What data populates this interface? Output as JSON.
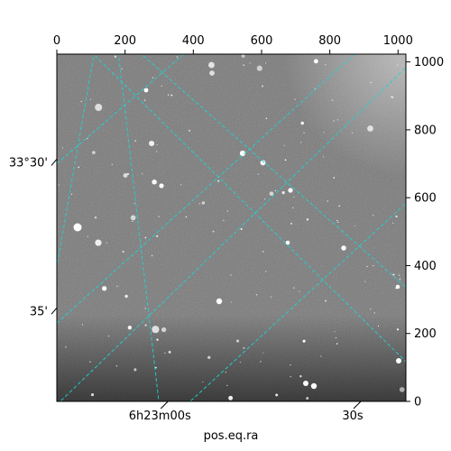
{
  "figure": {
    "title": "",
    "xlabel": "pos.eq.ra",
    "ylabel": ""
  },
  "pixel_axes": {
    "x_ticks": [
      0,
      200,
      400,
      600,
      800,
      1000
    ],
    "y_ticks": [
      0,
      200,
      400,
      600,
      800,
      1000
    ],
    "x_range": [
      0,
      1023
    ],
    "y_range": [
      0,
      1023
    ]
  },
  "world_axes": {
    "ra_labels": [
      {
        "text": "6h23m00s",
        "pixel": 310
      },
      {
        "text": "30s",
        "pixel": 875
      }
    ],
    "dec_labels": [
      {
        "text": "33°30'",
        "pixel": 703
      },
      {
        "text": "35'",
        "pixel": 265
      }
    ]
  },
  "grid": {
    "color": "#22d3d3",
    "style": "dashed",
    "lines": [
      [
        [
          -10,
          340
        ],
        [
          110,
          1030
        ]
      ],
      [
        [
          240,
          1030
        ],
        [
          1030,
          330
        ]
      ],
      [
        [
          0,
          700
        ],
        [
          380,
          1030
        ]
      ],
      [
        [
          100,
          1030
        ],
        [
          1030,
          110
        ]
      ],
      [
        [
          0,
          230
        ],
        [
          880,
          1030
        ]
      ],
      [
        [
          380,
          -10
        ],
        [
          1030,
          590
        ]
      ],
      [
        [
          0,
          -10
        ],
        [
          1030,
          990
        ]
      ],
      [
        [
          300,
          -10
        ],
        [
          180,
          1030
        ]
      ]
    ]
  },
  "image": {
    "type": "astronomical-grayscale",
    "background": "#6d6d6d"
  }
}
